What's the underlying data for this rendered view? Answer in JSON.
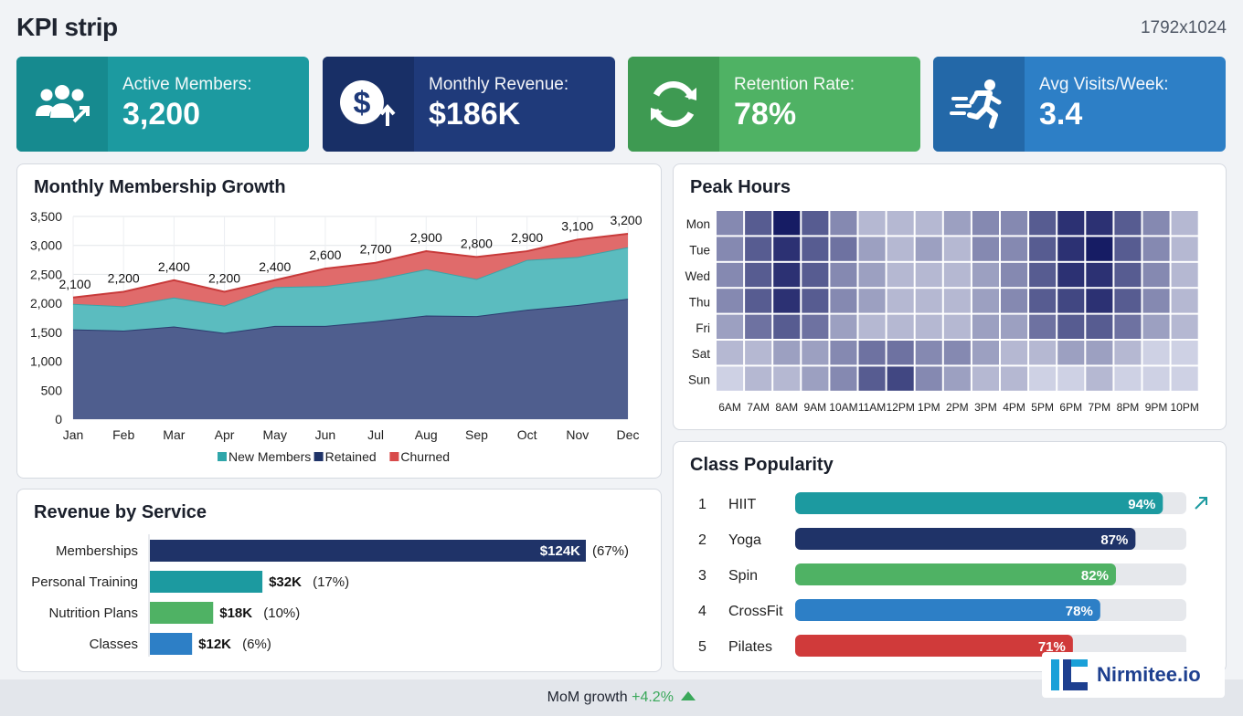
{
  "header": {
    "title": "KPI strip",
    "dimensions": "1792x1024"
  },
  "kpis": [
    {
      "label": "Active Members:",
      "value": "3,200",
      "icon": "users-growth-icon",
      "color": "#1c9aa0",
      "icon_bg": "#168a8f"
    },
    {
      "label": "Monthly Revenue:",
      "value": "$186K",
      "icon": "dollar-up-icon",
      "color": "#1f3a7a",
      "icon_bg": "#182f66"
    },
    {
      "label": "Retention Rate:",
      "value": "78%",
      "icon": "refresh-icon",
      "color": "#4fb264",
      "icon_bg": "#3e9a52"
    },
    {
      "label": "Avg Visits/Week:",
      "value": "3.4",
      "icon": "running-icon",
      "color": "#2d7fc6",
      "icon_bg": "#2368a8"
    }
  ],
  "growth": {
    "title": "Monthly Membership Growth",
    "legend": [
      "New Members",
      "Retained",
      "Churned"
    ]
  },
  "peak": {
    "title": "Peak Hours",
    "days": [
      "Mon",
      "Tue",
      "Wed",
      "Thu",
      "Fri",
      "Sat",
      "Sun"
    ],
    "hours": [
      "6AM",
      "7AM",
      "8AM",
      "9AM",
      "10AM",
      "11AM",
      "12PM",
      "1PM",
      "2PM",
      "3PM",
      "4PM",
      "5PM",
      "6PM",
      "7PM",
      "8PM",
      "9PM",
      "10PM"
    ]
  },
  "revenue": {
    "title": "Revenue by Service"
  },
  "classes": {
    "title": "Class Popularity",
    "items": [
      {
        "rank": "1",
        "name": "HIIT",
        "pct": 94,
        "label": "94%",
        "color": "#1c9aa0"
      },
      {
        "rank": "2",
        "name": "Yoga",
        "pct": 87,
        "label": "87%",
        "color": "#1f3368"
      },
      {
        "rank": "3",
        "name": "Spin",
        "pct": 82,
        "label": "82%",
        "color": "#4fb264"
      },
      {
        "rank": "4",
        "name": "CrossFit",
        "pct": 78,
        "label": "78%",
        "color": "#2d7fc6"
      },
      {
        "rank": "5",
        "name": "Pilates",
        "pct": 71,
        "label": "71%",
        "color": "#d03a3a"
      }
    ]
  },
  "footer": {
    "mom_label": "MoM growth",
    "mom_value": "+4.2%"
  },
  "brand": {
    "name": "Nirmitee.io"
  },
  "chart_data": [
    {
      "type": "area",
      "title": "Monthly Membership Growth",
      "categories": [
        "Jan",
        "Feb",
        "Mar",
        "Apr",
        "May",
        "Jun",
        "Jul",
        "Aug",
        "Sep",
        "Oct",
        "Nov",
        "Dec"
      ],
      "ylim": [
        0,
        3500
      ],
      "yticks": [
        0,
        500,
        1000,
        1500,
        2000,
        2500,
        3000,
        3500
      ],
      "ytick_labels": [
        "0",
        "500",
        "1,000",
        "1,500",
        "2,000",
        "2,500",
        "3,000",
        "3,500"
      ],
      "totals": [
        2100,
        2200,
        2400,
        2200,
        2400,
        2600,
        2700,
        2900,
        2800,
        2900,
        3100,
        3200
      ],
      "total_labels": [
        "2,100",
        "2,200",
        "2,400",
        "2,200",
        "2,400",
        "2,600",
        "2,700",
        "2,900",
        "2,800",
        "2,900",
        "3,100",
        "3,200"
      ],
      "series": [
        {
          "name": "Retained",
          "color": "#4f5e8e",
          "values": [
            1550,
            1530,
            1600,
            1490,
            1610,
            1610,
            1690,
            1790,
            1780,
            1890,
            1970,
            2080
          ]
        },
        {
          "name": "New Members",
          "color": "#5bbcbf",
          "values": [
            440,
            420,
            500,
            470,
            670,
            690,
            720,
            800,
            640,
            860,
            830,
            890
          ]
        },
        {
          "name": "Churned",
          "color": "#e06b6b",
          "values": [
            110,
            250,
            300,
            240,
            120,
            300,
            290,
            310,
            380,
            150,
            300,
            230
          ]
        }
      ],
      "grid": true,
      "legend": "bottom"
    },
    {
      "type": "heatmap",
      "title": "Peak Hours",
      "rows": [
        "Mon",
        "Tue",
        "Wed",
        "Thu",
        "Fri",
        "Sat",
        "Sun"
      ],
      "cols": [
        "6AM",
        "7AM",
        "8AM",
        "9AM",
        "10AM",
        "11AM",
        "12PM",
        "1PM",
        "2PM",
        "3PM",
        "4PM",
        "5PM",
        "6PM",
        "7PM",
        "8PM",
        "9PM",
        "10PM"
      ],
      "values": [
        [
          4,
          6,
          9,
          6,
          4,
          2,
          2,
          2,
          3,
          4,
          4,
          6,
          8,
          8,
          6,
          4,
          2
        ],
        [
          4,
          6,
          8,
          6,
          5,
          3,
          2,
          3,
          2,
          4,
          4,
          6,
          8,
          9,
          6,
          4,
          2
        ],
        [
          4,
          6,
          8,
          6,
          4,
          3,
          2,
          2,
          2,
          3,
          4,
          6,
          8,
          8,
          6,
          4,
          2
        ],
        [
          4,
          6,
          8,
          6,
          4,
          3,
          2,
          2,
          2,
          3,
          4,
          6,
          7,
          8,
          6,
          4,
          2
        ],
        [
          3,
          5,
          6,
          5,
          3,
          2,
          2,
          2,
          2,
          3,
          3,
          5,
          6,
          6,
          5,
          3,
          2
        ],
        [
          2,
          2,
          3,
          3,
          4,
          5,
          5,
          4,
          4,
          3,
          2,
          2,
          3,
          3,
          2,
          1,
          1
        ],
        [
          1,
          2,
          2,
          3,
          4,
          6,
          7,
          4,
          3,
          2,
          2,
          1,
          1,
          2,
          1,
          1,
          1
        ]
      ]
    },
    {
      "type": "bar",
      "title": "Revenue by Service",
      "categories": [
        "Memberships",
        "Personal Training",
        "Nutrition Plans",
        "Classes"
      ],
      "values": [
        124,
        32,
        18,
        12
      ],
      "value_labels": [
        "$124K",
        "$32K",
        "$18K",
        "$12K"
      ],
      "pct_labels": [
        "(67%)",
        "(17%)",
        "(10%)",
        "(6%)"
      ],
      "colors": [
        "#1f3368",
        "#1c9aa0",
        "#4fb264",
        "#2d7fc6"
      ],
      "orientation": "horizontal"
    },
    {
      "type": "bar",
      "title": "Class Popularity",
      "categories": [
        "HIIT",
        "Yoga",
        "Spin",
        "CrossFit",
        "Pilates"
      ],
      "values": [
        94,
        87,
        82,
        78,
        71
      ],
      "orientation": "horizontal"
    }
  ]
}
